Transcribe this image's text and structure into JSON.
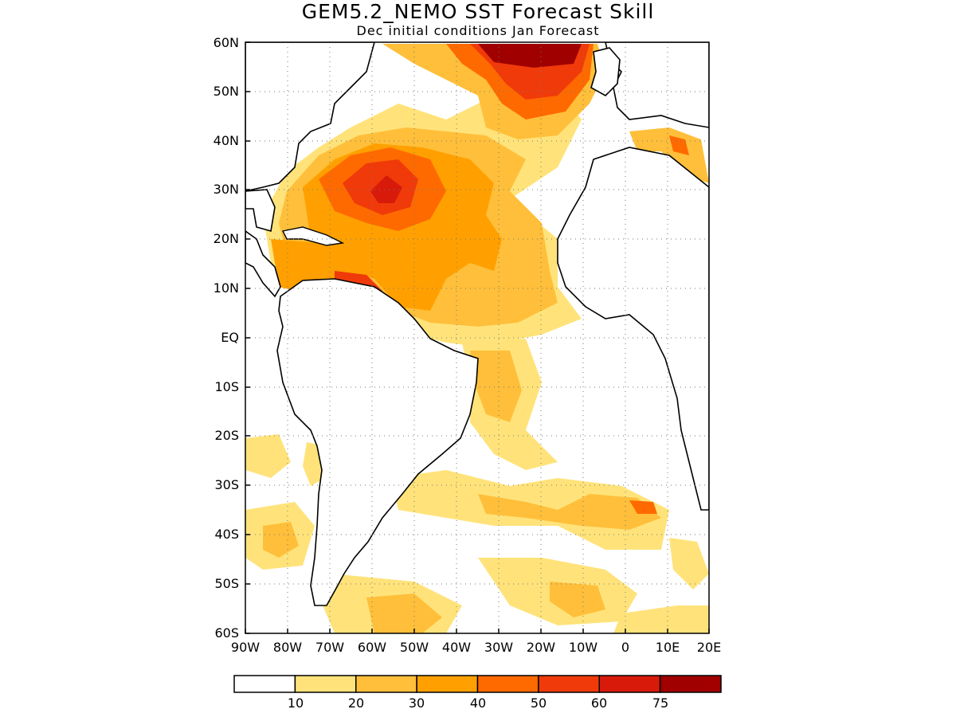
{
  "title": "GEM5.2_NEMO SST Forecast Skill",
  "subtitle": "Dec initial conditions  Jan Forecast",
  "lat_labels": [
    "60N",
    "50N",
    "40N",
    "30N",
    "20N",
    "10N",
    "EQ",
    "10S",
    "20S",
    "30S",
    "40S",
    "50S",
    "60S"
  ],
  "lon_labels": [
    "90W",
    "80W",
    "70W",
    "60W",
    "50W",
    "40W",
    "30W",
    "20W",
    "10W",
    "0",
    "10E",
    "20E"
  ],
  "colorbar": {
    "colors": [
      "#ffffff",
      "#ffe37a",
      "#ffbf3a",
      "#ffa000",
      "#ff6a00",
      "#f03a0a",
      "#d81a0a",
      "#a00000"
    ],
    "labels": [
      "10",
      "20",
      "30",
      "40",
      "50",
      "60",
      "75"
    ]
  },
  "map": {
    "region": "Atlantic Ocean",
    "lat_range": [
      -60,
      60
    ],
    "lon_range": [
      -90,
      20
    ]
  }
}
